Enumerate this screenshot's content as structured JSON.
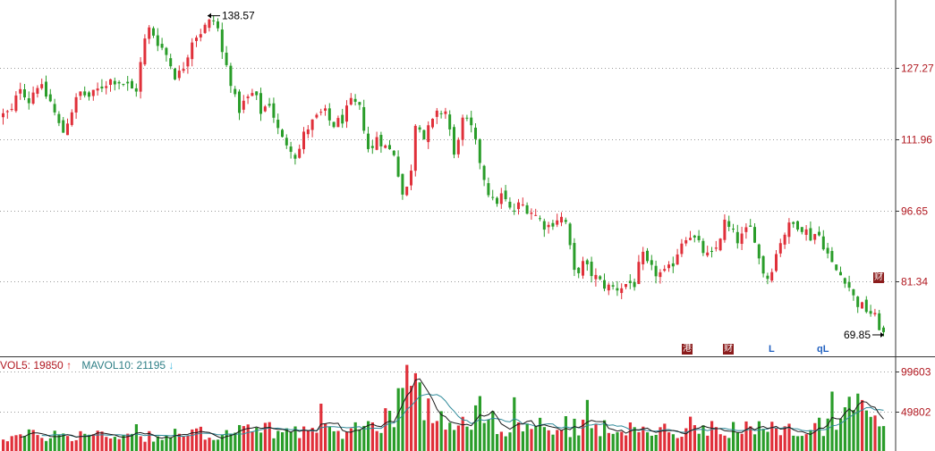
{
  "chart_data": [
    {
      "type": "candlestick",
      "title": "",
      "xlabel": "",
      "ylabel": "",
      "y_ticks": [
        "127.27",
        "111.96",
        "96.65",
        "81.34"
      ],
      "ylim": [
        66.0,
        141.0
      ],
      "grid": true,
      "high_annotation": "138.57",
      "low_annotation": "69.85",
      "up_color": "#e0303a",
      "down_color": "#2a9d2a",
      "markers": [
        {
          "label": "财",
          "style": "box",
          "color": "#8b1c1c"
        },
        {
          "label": "港",
          "style": "box",
          "color": "#8b1c1c"
        },
        {
          "label": "财",
          "style": "box",
          "color": "#8b1c1c"
        },
        {
          "label": "L",
          "style": "letter",
          "color": "#1f5fbf"
        },
        {
          "label": "qL",
          "style": "letter",
          "color": "#1f5fbf"
        }
      ],
      "close_path": [
        [
          0,
          117
        ],
        [
          12,
          118
        ],
        [
          22,
          124
        ],
        [
          30,
          120
        ],
        [
          40,
          124
        ],
        [
          55,
          120
        ],
        [
          68,
          113
        ],
        [
          78,
          118
        ],
        [
          88,
          122
        ],
        [
          100,
          121
        ],
        [
          115,
          124
        ],
        [
          125,
          125
        ],
        [
          138,
          124
        ],
        [
          150,
          122
        ],
        [
          160,
          133
        ],
        [
          166,
          136
        ],
        [
          175,
          133
        ],
        [
          185,
          130
        ],
        [
          196,
          125
        ],
        [
          204,
          128
        ],
        [
          214,
          134
        ],
        [
          222,
          135
        ],
        [
          232,
          137
        ],
        [
          240,
          138
        ],
        [
          246,
          131
        ],
        [
          256,
          125
        ],
        [
          264,
          118
        ],
        [
          272,
          120
        ],
        [
          282,
          122
        ],
        [
          290,
          118
        ],
        [
          300,
          120
        ],
        [
          312,
          112
        ],
        [
          322,
          111
        ],
        [
          330,
          108
        ],
        [
          340,
          114
        ],
        [
          350,
          116
        ],
        [
          360,
          118
        ],
        [
          370,
          115
        ],
        [
          380,
          116
        ],
        [
          392,
          120
        ],
        [
          402,
          118
        ],
        [
          412,
          108
        ],
        [
          420,
          113
        ],
        [
          430,
          110
        ],
        [
          440,
          109
        ],
        [
          448,
          100
        ],
        [
          456,
          102
        ],
        [
          464,
          118
        ],
        [
          472,
          112
        ],
        [
          480,
          115
        ],
        [
          490,
          118
        ],
        [
          498,
          118
        ],
        [
          506,
          108
        ],
        [
          514,
          116
        ],
        [
          524,
          115
        ],
        [
          534,
          108
        ],
        [
          542,
          102
        ],
        [
          550,
          98
        ],
        [
          560,
          100
        ],
        [
          570,
          96
        ],
        [
          580,
          98
        ],
        [
          590,
          97
        ],
        [
          600,
          95
        ],
        [
          610,
          93
        ],
        [
          620,
          95
        ],
        [
          630,
          95
        ],
        [
          640,
          83
        ],
        [
          650,
          85
        ],
        [
          660,
          83
        ],
        [
          670,
          81
        ],
        [
          680,
          80
        ],
        [
          690,
          80
        ],
        [
          700,
          81
        ],
        [
          708,
          81
        ],
        [
          716,
          87
        ],
        [
          724,
          84
        ],
        [
          734,
          83
        ],
        [
          744,
          83
        ],
        [
          752,
          86
        ],
        [
          760,
          90
        ],
        [
          768,
          92
        ],
        [
          776,
          90
        ],
        [
          784,
          88
        ],
        [
          792,
          86
        ],
        [
          800,
          89
        ],
        [
          808,
          94
        ],
        [
          816,
          92
        ],
        [
          824,
          90
        ],
        [
          832,
          92
        ],
        [
          840,
          93
        ],
        [
          848,
          85
        ],
        [
          856,
          82
        ],
        [
          864,
          86
        ],
        [
          872,
          91
        ],
        [
          880,
          93
        ],
        [
          888,
          94
        ],
        [
          896,
          93
        ],
        [
          904,
          91
        ],
        [
          912,
          92
        ],
        [
          920,
          89
        ],
        [
          928,
          85
        ],
        [
          936,
          83
        ],
        [
          944,
          82
        ],
        [
          952,
          78
        ],
        [
          960,
          76
        ],
        [
          970,
          75
        ],
        [
          978,
          73
        ],
        [
          986,
          70
        ]
      ]
    },
    {
      "type": "bar",
      "title": "",
      "y_ticks": [
        "99603",
        "49802"
      ],
      "ylim": [
        0,
        112000
      ],
      "grid": true,
      "legend": [
        {
          "name": "VOL5",
          "value": "19850",
          "direction": "up"
        },
        {
          "name": "MAVOL10",
          "value": "21195",
          "direction": "down"
        }
      ],
      "ma_colors": {
        "VOL5": "#1a1a1a",
        "MAVOL10": "#2f8a9a"
      },
      "volume_path": [
        [
          0,
          18000
        ],
        [
          60,
          20000
        ],
        [
          120,
          21000
        ],
        [
          180,
          19000
        ],
        [
          240,
          23000
        ],
        [
          300,
          26000
        ],
        [
          360,
          24000
        ],
        [
          400,
          28000
        ],
        [
          420,
          35000
        ],
        [
          440,
          55000
        ],
        [
          450,
          100000
        ],
        [
          458,
          80000
        ],
        [
          470,
          62000
        ],
        [
          482,
          48000
        ],
        [
          500,
          42000
        ],
        [
          520,
          45000
        ],
        [
          540,
          38000
        ],
        [
          560,
          32000
        ],
        [
          580,
          30000
        ],
        [
          600,
          31000
        ],
        [
          640,
          30000
        ],
        [
          680,
          27000
        ],
        [
          720,
          24000
        ],
        [
          760,
          30000
        ],
        [
          800,
          31000
        ],
        [
          840,
          26000
        ],
        [
          880,
          25000
        ],
        [
          910,
          29000
        ],
        [
          930,
          40000
        ],
        [
          950,
          58000
        ],
        [
          970,
          48000
        ],
        [
          986,
          46000
        ]
      ]
    }
  ],
  "legend_text": {
    "vol5": "VOL5: 19850",
    "vol5_arrow": "↑",
    "mavol10": "MAVOL10: 21195",
    "mavol10_arrow": "↓"
  }
}
